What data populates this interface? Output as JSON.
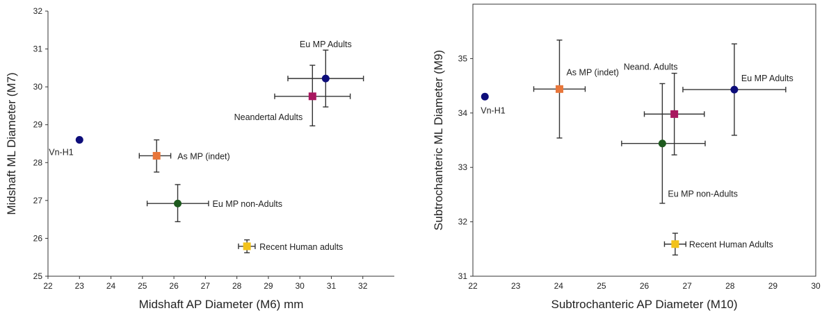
{
  "chart_data": [
    {
      "type": "scatter",
      "title": "",
      "xlabel": "Midshaft AP Diameter (M6) mm",
      "ylabel": "Midshaft ML Diameter (M7)",
      "xlim": [
        22,
        33
      ],
      "ylim": [
        25,
        32
      ],
      "x_ticks": [
        "22",
        "23",
        "24",
        "25",
        "26",
        "27",
        "28",
        "29",
        "30",
        "31",
        "32"
      ],
      "y_ticks": [
        "25",
        "26",
        "27",
        "28",
        "29",
        "30",
        "31",
        "32"
      ],
      "grid": false,
      "points": [
        {
          "label": "Vn-H1",
          "x": 23.0,
          "y": 28.6,
          "xerr": null,
          "yerr": null,
          "color": "#0d0d7a",
          "marker": "circle"
        },
        {
          "label": "As MP (indet)",
          "x": 25.45,
          "y": 28.18,
          "xerr": [
            0.55,
            0.45
          ],
          "yerr": [
            0.43,
            0.42
          ],
          "color": "#e8763a",
          "marker": "square"
        },
        {
          "label": "Eu MP non-Adults",
          "x": 26.12,
          "y": 26.92,
          "xerr": [
            0.97,
            0.98
          ],
          "yerr": [
            0.48,
            0.5
          ],
          "color": "#1e5a1e",
          "marker": "circle"
        },
        {
          "label": "Recent Human adults",
          "x": 28.32,
          "y": 25.79,
          "xerr": [
            0.27,
            0.26
          ],
          "yerr": [
            0.17,
            0.17
          ],
          "color": "#f2c21b",
          "marker": "square"
        },
        {
          "label": "Neandertal Adults",
          "x": 30.4,
          "y": 29.75,
          "xerr": [
            1.2,
            1.2
          ],
          "yerr": [
            0.78,
            0.82
          ],
          "color": "#a8175f",
          "marker": "square"
        },
        {
          "label": "Eu MP Adults",
          "x": 30.82,
          "y": 30.22,
          "xerr": [
            1.2,
            1.2
          ],
          "yerr": [
            0.75,
            0.75
          ],
          "color": "#0d0d7a",
          "marker": "circle"
        }
      ]
    },
    {
      "type": "scatter",
      "title": "",
      "xlabel": "Subtrochanteric AP Diameter (M10)",
      "ylabel": "Subtrochanteric ML Diameter (M9)",
      "xlim": [
        22,
        30
      ],
      "ylim": [
        31,
        36
      ],
      "x_ticks": [
        "22",
        "23",
        "24",
        "25",
        "26",
        "27",
        "28",
        "29",
        "30"
      ],
      "y_ticks": [
        "31",
        "32",
        "33",
        "34",
        "35"
      ],
      "grid": false,
      "points": [
        {
          "label": "Vn-H1",
          "x": 22.28,
          "y": 34.3,
          "xerr": null,
          "yerr": null,
          "color": "#0d0d7a",
          "marker": "circle"
        },
        {
          "label": "As MP (indet)",
          "x": 24.02,
          "y": 34.44,
          "xerr": [
            0.6,
            0.6
          ],
          "yerr": [
            0.9,
            0.9
          ],
          "color": "#e8763a",
          "marker": "square"
        },
        {
          "label": "Neand. Adults",
          "x": 26.7,
          "y": 33.98,
          "xerr": [
            0.7,
            0.7
          ],
          "yerr": [
            0.75,
            0.75
          ],
          "color": "#a8175f",
          "marker": "square"
        },
        {
          "label": "Eu MP non-Adults",
          "x": 26.42,
          "y": 33.44,
          "xerr": [
            0.95,
            1.0
          ],
          "yerr": [
            1.1,
            1.1
          ],
          "color": "#1e5a1e",
          "marker": "circle"
        },
        {
          "label": "Eu MP Adults",
          "x": 28.1,
          "y": 34.43,
          "xerr": [
            1.2,
            1.2
          ],
          "yerr": [
            0.84,
            0.84
          ],
          "color": "#0d0d7a",
          "marker": "circle"
        },
        {
          "label": "Recent Human Adults",
          "x": 26.72,
          "y": 31.59,
          "xerr": [
            0.25,
            0.25
          ],
          "yerr": [
            0.2,
            0.2
          ],
          "color": "#f2c21b",
          "marker": "square"
        }
      ]
    }
  ]
}
